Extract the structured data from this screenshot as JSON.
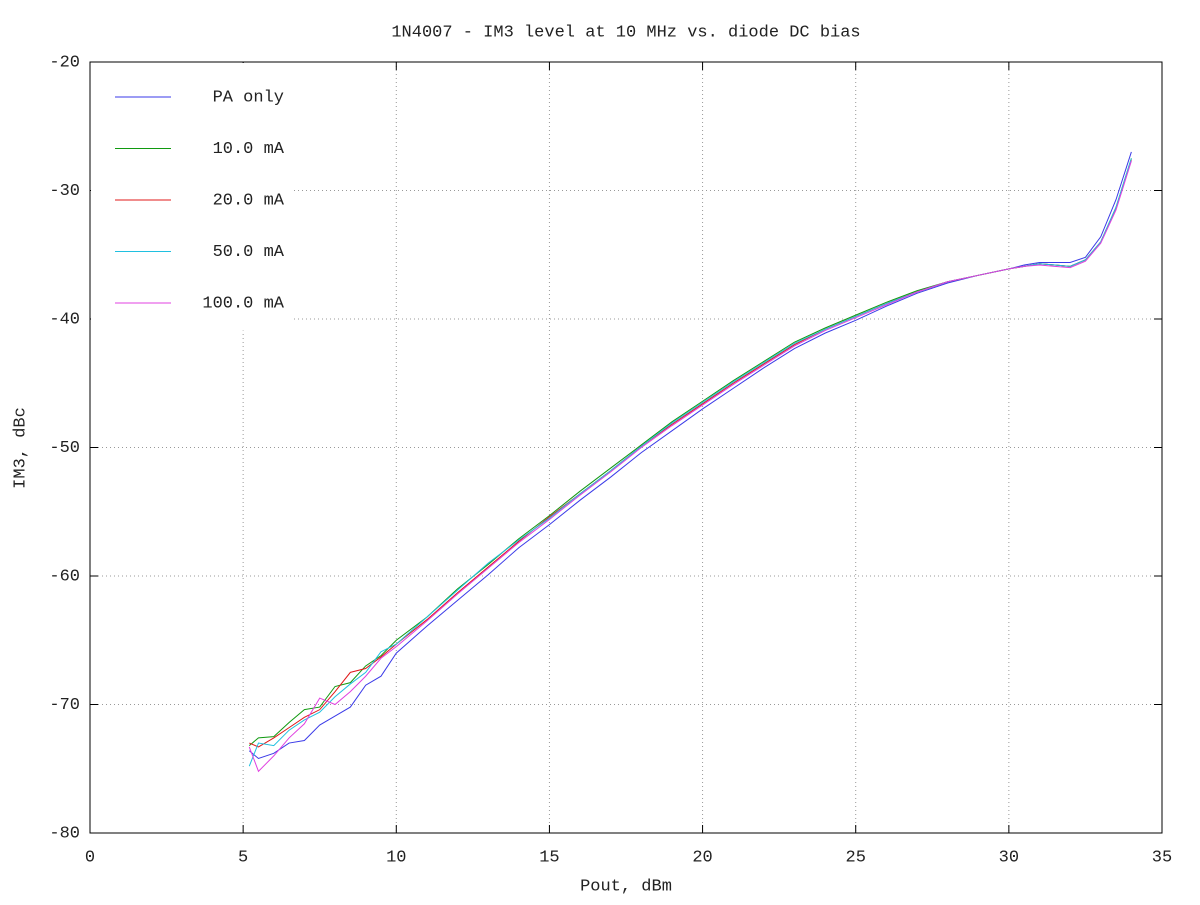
{
  "chart_data": {
    "type": "line",
    "title": "1N4007 - IM3 level at 10 MHz vs. diode DC bias",
    "x_label": "Pout, dBm",
    "y_label": "IM3, dBc",
    "xlim": [
      0,
      35
    ],
    "xticks": [
      0,
      5,
      10,
      15,
      20,
      25,
      30,
      35
    ],
    "ylim": [
      -80,
      -20
    ],
    "yticks": [
      -80,
      -70,
      -60,
      -50,
      -40,
      -30,
      -20
    ],
    "grid": true,
    "legend": "top-left",
    "x": [
      5.2,
      5.5,
      6,
      6.5,
      7,
      7.5,
      8,
      8.5,
      9,
      9.5,
      10,
      11,
      12,
      13,
      14,
      15,
      16,
      17,
      18,
      19,
      20,
      21,
      22,
      23,
      24,
      25,
      26,
      27,
      28,
      29,
      30,
      30.5,
      31,
      31.5,
      32,
      32.5,
      33,
      33.5,
      34
    ],
    "series": [
      {
        "name": "PA only",
        "color": "#3a3ae8",
        "values": [
          -73.6,
          -74.2,
          -73.8,
          -73.0,
          -72.8,
          -71.6,
          -70.9,
          -70.2,
          -68.5,
          -67.8,
          -66.0,
          -63.9,
          -61.9,
          -59.9,
          -57.8,
          -56.0,
          -54.1,
          -52.3,
          -50.4,
          -48.7,
          -47.0,
          -45.4,
          -43.8,
          -42.3,
          -41.1,
          -40.1,
          -39.0,
          -38.0,
          -37.2,
          -36.6,
          -36.1,
          -35.8,
          -35.6,
          -35.6,
          -35.6,
          -35.2,
          -33.6,
          -30.7,
          -27.0
        ]
      },
      {
        "name": "10.0 mA",
        "color": "#109a10",
        "values": [
          -73.2,
          -72.6,
          -72.5,
          -71.4,
          -70.4,
          -70.2,
          -68.6,
          -68.3,
          -67.0,
          -66.2,
          -65.0,
          -63.2,
          -61.0,
          -59.1,
          -57.1,
          -55.3,
          -53.4,
          -51.6,
          -49.8,
          -48.0,
          -46.4,
          -44.8,
          -43.3,
          -41.8,
          -40.7,
          -39.7,
          -38.7,
          -37.8,
          -37.1,
          -36.6,
          -36.1,
          -35.9,
          -35.7,
          -35.8,
          -35.9,
          -35.4,
          -34.0,
          -31.3,
          -27.5
        ]
      },
      {
        "name": "20.0 mA",
        "color": "#e01818",
        "values": [
          -73.0,
          -73.3,
          -72.6,
          -71.8,
          -71.0,
          -70.4,
          -69.0,
          -67.5,
          -67.2,
          -66.3,
          -65.3,
          -63.4,
          -61.3,
          -59.3,
          -57.3,
          -55.4,
          -53.6,
          -51.8,
          -49.9,
          -48.2,
          -46.6,
          -45.0,
          -43.5,
          -42.0,
          -40.8,
          -39.8,
          -38.8,
          -37.9,
          -37.1,
          -36.6,
          -36.1,
          -35.9,
          -35.7,
          -35.8,
          -35.9,
          -35.4,
          -34.0,
          -31.4,
          -27.6
        ]
      },
      {
        "name": "50.0 mA",
        "color": "#20c0e0",
        "values": [
          -74.8,
          -73.0,
          -73.2,
          -72.0,
          -71.2,
          -70.6,
          -69.4,
          -68.4,
          -67.5,
          -65.9,
          -65.3,
          -63.2,
          -61.1,
          -59.0,
          -57.2,
          -55.5,
          -53.6,
          -51.8,
          -49.9,
          -48.1,
          -46.5,
          -44.9,
          -43.4,
          -41.9,
          -40.8,
          -39.8,
          -38.8,
          -37.9,
          -37.1,
          -36.6,
          -36.1,
          -35.9,
          -35.7,
          -35.8,
          -35.9,
          -35.4,
          -34.0,
          -31.3,
          -27.5
        ]
      },
      {
        "name": "100.0 mA",
        "color": "#e040e0",
        "values": [
          -73.3,
          -75.2,
          -74.0,
          -72.6,
          -71.5,
          -69.5,
          -70.0,
          -69.0,
          -67.8,
          -66.4,
          -65.5,
          -63.5,
          -61.4,
          -59.4,
          -57.4,
          -55.6,
          -53.7,
          -51.9,
          -50.0,
          -48.3,
          -46.7,
          -45.1,
          -43.6,
          -42.1,
          -40.9,
          -39.9,
          -38.9,
          -37.9,
          -37.1,
          -36.6,
          -36.1,
          -35.9,
          -35.8,
          -35.9,
          -36.0,
          -35.5,
          -34.1,
          -31.5,
          -27.7
        ]
      }
    ]
  }
}
